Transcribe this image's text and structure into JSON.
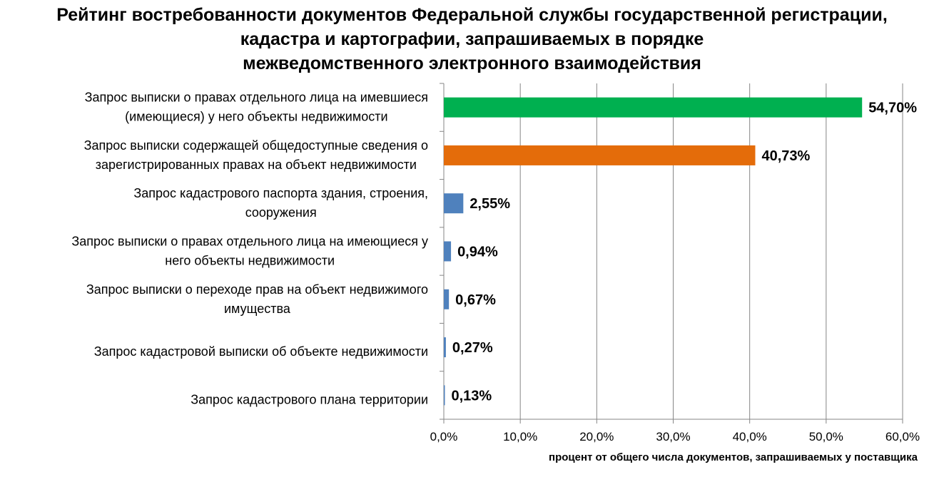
{
  "chart_data": {
    "type": "bar",
    "orientation": "horizontal",
    "title_lines": [
      "Рейтинг востребованности документов Федеральной службы государственной регистрации,",
      "кадастра и картографии, запрашиваемых в порядке",
      "межведомственного электронного взаимодействия"
    ],
    "categories": [
      [
        "Запрос выписки о правах отдельного лица на имевшиеся",
        "(имеющиеся)  у него объекты  недвижимости"
      ],
      [
        "Запрос выписки содержащей  общедоступные  сведения о",
        "зарегистрированных  правах на объект  недвижимости"
      ],
      [
        "Запрос кадастрового паспорта здания, строения,",
        "сооружения"
      ],
      [
        "Запрос выписки о правах отдельного лица на имеющиеся у",
        "него объекты  недвижимости"
      ],
      [
        "Запрос выписки о переходе  прав на объект недвижимого",
        "имущества"
      ],
      [
        "Запрос кадастровой выписки об объекте  недвижимости"
      ],
      [
        "Запрос кадастрового  плана территории"
      ]
    ],
    "values": [
      54.7,
      40.73,
      2.55,
      0.94,
      0.67,
      0.27,
      0.13
    ],
    "data_labels": [
      "54,70%",
      "40,73%",
      "2,55%",
      "0,94%",
      "0,67%",
      "0,27%",
      "0,13%"
    ],
    "bar_colors": [
      "#00b050",
      "#e46c0a",
      "#4f81bd",
      "#4f81bd",
      "#4f81bd",
      "#4f81bd",
      "#4f81bd"
    ],
    "xlim": [
      0,
      60
    ],
    "x_ticks": [
      0,
      10,
      20,
      30,
      40,
      50,
      60
    ],
    "x_tick_labels": [
      "0,0%",
      "10,0%",
      "20,0%",
      "30,0%",
      "40,0%",
      "50,0%",
      "60,0%"
    ],
    "xlabel": "процент  от общего числа документов,  запрашиваемых  у поставщика",
    "ylabel": "",
    "grid": true,
    "legend": "none"
  }
}
